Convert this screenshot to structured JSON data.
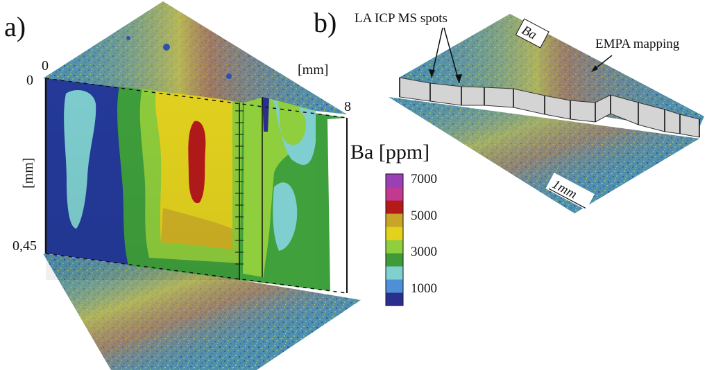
{
  "panel_a": {
    "label": "a)",
    "axis_top_origin": "0",
    "depth_top": "0",
    "depth_bottom": "0,45",
    "depth_axis_label": "[mm]",
    "length_axis_label": "[mm]",
    "length_max": "8"
  },
  "colorbar": {
    "title": "Ba [ppm]",
    "ticks": [
      "7000",
      "5000",
      "3000",
      "1000"
    ],
    "colors": [
      "#2a2f8f",
      "#4f8fd6",
      "#7fd0cf",
      "#3f9a3a",
      "#8fce3c",
      "#e2d21c",
      "#c9a428",
      "#b51a1a",
      "#c23a8f",
      "#9b3fb4"
    ]
  },
  "panel_b": {
    "label": "b)",
    "spots_label": "LA ICP MS spots",
    "element_tag": "Ba",
    "mapping_label": "EMPA mapping",
    "scale_label": "1mm"
  }
}
